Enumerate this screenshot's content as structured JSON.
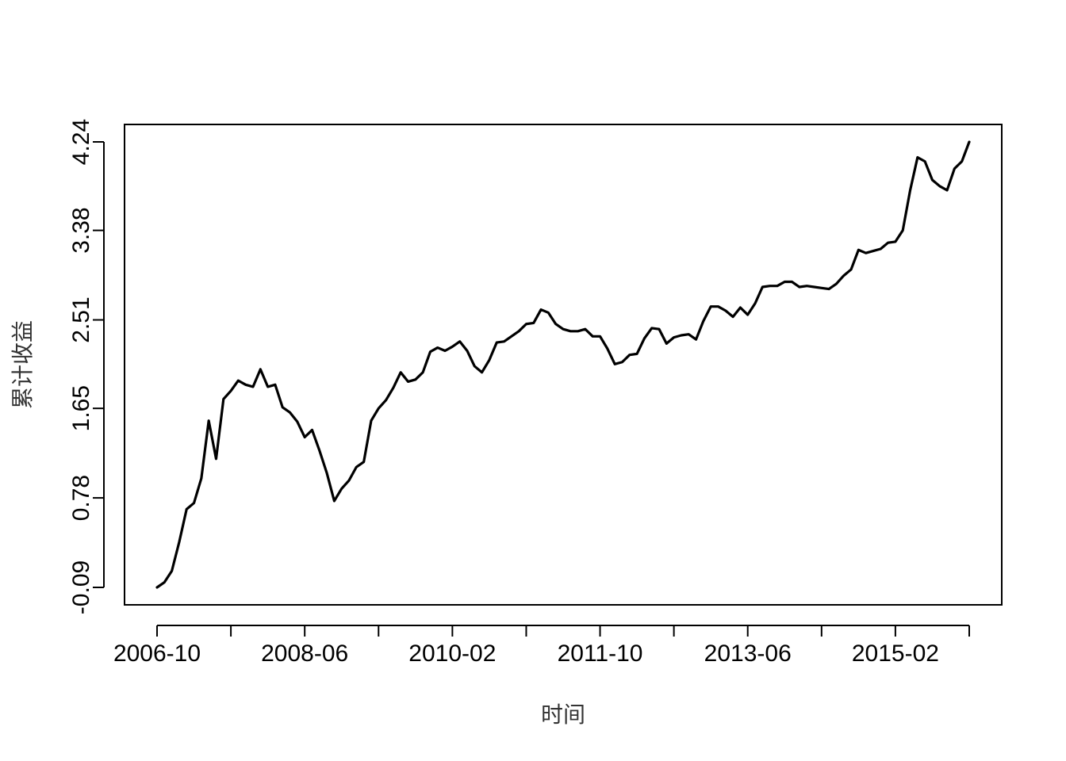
{
  "chart_data": {
    "type": "line",
    "title": "",
    "xlabel": "时间",
    "ylabel": "累计收益",
    "x_tick_labels": [
      "2006-10",
      "2008-06",
      "2010-02",
      "2011-10",
      "2013-06",
      "2015-02"
    ],
    "x_tick_count": 12,
    "y_ticks": [
      -0.09,
      0.78,
      1.65,
      2.51,
      3.38,
      4.24
    ],
    "y_tick_labels": [
      "-0.09",
      "0.78",
      "1.65",
      "2.51",
      "3.38",
      "4.24"
    ],
    "ylim": [
      -0.09,
      4.24
    ],
    "grid": false,
    "line_color": "#000000",
    "series": [
      {
        "values": [
          -0.09,
          -0.04,
          0.07,
          0.35,
          0.67,
          0.73,
          0.97,
          1.53,
          1.16,
          1.74,
          1.82,
          1.92,
          1.88,
          1.86,
          2.03,
          1.86,
          1.88,
          1.66,
          1.61,
          1.52,
          1.37,
          1.44,
          1.24,
          1.02,
          0.75,
          0.87,
          0.95,
          1.08,
          1.13,
          1.53,
          1.65,
          1.73,
          1.85,
          2.0,
          1.91,
          1.93,
          2.0,
          2.2,
          2.24,
          2.21,
          2.25,
          2.3,
          2.21,
          2.06,
          2.0,
          2.12,
          2.29,
          2.3,
          2.35,
          2.4,
          2.47,
          2.48,
          2.61,
          2.58,
          2.47,
          2.42,
          2.4,
          2.4,
          2.42,
          2.35,
          2.35,
          2.23,
          2.08,
          2.1,
          2.17,
          2.18,
          2.33,
          2.43,
          2.42,
          2.28,
          2.34,
          2.36,
          2.37,
          2.32,
          2.5,
          2.64,
          2.64,
          2.6,
          2.54,
          2.63,
          2.56,
          2.67,
          2.83,
          2.84,
          2.84,
          2.88,
          2.88,
          2.83,
          2.84,
          2.83,
          2.82,
          2.81,
          2.86,
          2.94,
          3.0,
          3.19,
          3.16,
          3.18,
          3.2,
          3.26,
          3.27,
          3.38,
          3.77,
          4.09,
          4.05,
          3.87,
          3.81,
          3.77,
          3.98,
          4.05,
          4.24
        ]
      }
    ]
  }
}
